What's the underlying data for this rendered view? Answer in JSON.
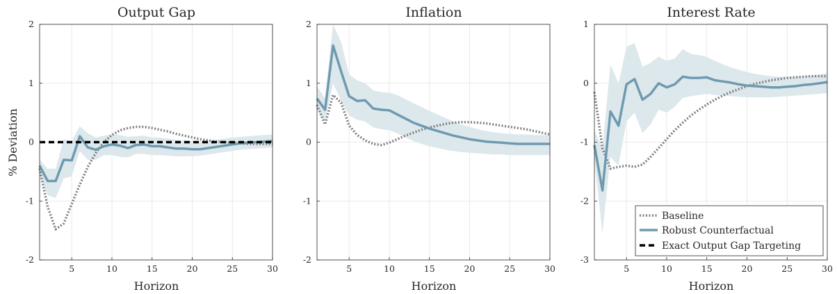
{
  "chart_data": [
    {
      "type": "line",
      "title": "Output Gap",
      "xlabel": "Horizon",
      "ylabel": "% Deviation",
      "xlim": [
        1,
        30
      ],
      "ylim": [
        -2,
        2
      ],
      "xticks": [
        5,
        10,
        15,
        20,
        25,
        30
      ],
      "yticks": [
        -2,
        -1,
        0,
        1,
        2
      ],
      "grid": true,
      "x": [
        1,
        2,
        3,
        4,
        5,
        6,
        7,
        8,
        9,
        10,
        11,
        12,
        13,
        14,
        15,
        16,
        17,
        18,
        19,
        20,
        21,
        22,
        23,
        24,
        25,
        26,
        27,
        28,
        29,
        30
      ],
      "series": [
        {
          "name": "Baseline",
          "style": "dotted",
          "color": "#808080",
          "values": [
            -0.45,
            -1.1,
            -1.48,
            -1.38,
            -1.05,
            -0.72,
            -0.42,
            -0.18,
            0.0,
            0.12,
            0.2,
            0.24,
            0.26,
            0.26,
            0.24,
            0.21,
            0.18,
            0.14,
            0.11,
            0.08,
            0.05,
            0.03,
            0.01,
            0.0,
            -0.01,
            -0.02,
            -0.03,
            -0.03,
            -0.03,
            -0.03
          ]
        },
        {
          "name": "Robust Counterfactual",
          "style": "solid",
          "color": "#6f9aae",
          "values": [
            -0.4,
            -0.66,
            -0.66,
            -0.3,
            -0.31,
            0.1,
            -0.09,
            -0.13,
            -0.07,
            -0.04,
            -0.06,
            -0.1,
            -0.05,
            -0.04,
            -0.07,
            -0.07,
            -0.09,
            -0.11,
            -0.11,
            -0.12,
            -0.12,
            -0.1,
            -0.08,
            -0.06,
            -0.04,
            -0.02,
            -0.01,
            0.0,
            0.01,
            0.02
          ],
          "band_lower": [
            -0.55,
            -0.9,
            -0.95,
            -0.62,
            -0.58,
            -0.15,
            -0.3,
            -0.3,
            -0.22,
            -0.22,
            -0.25,
            -0.26,
            -0.2,
            -0.2,
            -0.22,
            -0.22,
            -0.23,
            -0.24,
            -0.24,
            -0.24,
            -0.23,
            -0.21,
            -0.19,
            -0.17,
            -0.15,
            -0.13,
            -0.12,
            -0.11,
            -0.1,
            -0.09
          ],
          "band_upper": [
            -0.3,
            -0.45,
            -0.45,
            0.05,
            0.02,
            0.27,
            0.15,
            0.08,
            0.11,
            0.13,
            0.12,
            0.09,
            0.1,
            0.11,
            0.08,
            0.08,
            0.06,
            0.04,
            0.03,
            0.02,
            0.02,
            0.03,
            0.04,
            0.06,
            0.08,
            0.09,
            0.1,
            0.11,
            0.12,
            0.13
          ]
        },
        {
          "name": "Exact Output Gap Targeting",
          "style": "dashed",
          "color": "#000000",
          "values": [
            0,
            0,
            0,
            0,
            0,
            0,
            0,
            0,
            0,
            0,
            0,
            0,
            0,
            0,
            0,
            0,
            0,
            0,
            0,
            0,
            0,
            0,
            0,
            0,
            0,
            0,
            0,
            0,
            0,
            0
          ]
        }
      ]
    },
    {
      "type": "line",
      "title": "Inflation",
      "xlabel": "Horizon",
      "ylabel": "",
      "xlim": [
        1,
        30
      ],
      "ylim": [
        -2,
        2
      ],
      "xticks": [
        5,
        10,
        15,
        20,
        25,
        30
      ],
      "yticks": [
        -2,
        -1,
        0,
        1,
        2
      ],
      "grid": true,
      "x": [
        1,
        2,
        3,
        4,
        5,
        6,
        7,
        8,
        9,
        10,
        11,
        12,
        13,
        14,
        15,
        16,
        17,
        18,
        19,
        20,
        21,
        22,
        23,
        24,
        25,
        26,
        27,
        28,
        29,
        30
      ],
      "series": [
        {
          "name": "Baseline",
          "style": "dotted",
          "color": "#808080",
          "values": [
            0.63,
            0.3,
            0.8,
            0.67,
            0.28,
            0.12,
            0.03,
            -0.03,
            -0.05,
            -0.01,
            0.05,
            0.11,
            0.16,
            0.21,
            0.25,
            0.28,
            0.31,
            0.33,
            0.34,
            0.34,
            0.33,
            0.32,
            0.3,
            0.28,
            0.26,
            0.24,
            0.22,
            0.19,
            0.16,
            0.13
          ]
        },
        {
          "name": "Robust Counterfactual",
          "style": "solid",
          "color": "#6f9aae",
          "values": [
            0.74,
            0.55,
            1.64,
            1.2,
            0.78,
            0.7,
            0.71,
            0.57,
            0.55,
            0.54,
            0.47,
            0.4,
            0.33,
            0.28,
            0.23,
            0.19,
            0.15,
            0.11,
            0.08,
            0.05,
            0.03,
            0.01,
            0.0,
            -0.01,
            -0.02,
            -0.03,
            -0.03,
            -0.03,
            -0.03,
            -0.03
          ]
        },
        {
          "name": "Robust band",
          "style": "band",
          "color": "#dde8ed",
          "band_lower": [
            0.55,
            0.35,
            1.0,
            0.7,
            0.45,
            0.38,
            0.35,
            0.25,
            0.22,
            0.2,
            0.15,
            0.08,
            0.02,
            -0.03,
            -0.07,
            -0.1,
            -0.13,
            -0.15,
            -0.17,
            -0.18,
            -0.19,
            -0.2,
            -0.21,
            -0.21,
            -0.22,
            -0.22,
            -0.22,
            -0.22,
            -0.22,
            -0.22
          ],
          "band_upper": [
            0.95,
            0.75,
            2.0,
            1.7,
            1.15,
            1.05,
            1.0,
            0.88,
            0.85,
            0.84,
            0.8,
            0.73,
            0.66,
            0.6,
            0.53,
            0.47,
            0.41,
            0.35,
            0.3,
            0.26,
            0.22,
            0.19,
            0.17,
            0.15,
            0.14,
            0.13,
            0.13,
            0.12,
            0.12,
            0.12
          ]
        }
      ]
    },
    {
      "type": "line",
      "title": "Interest Rate",
      "xlabel": "Horizon",
      "ylabel": "",
      "xlim": [
        1,
        30
      ],
      "ylim": [
        -3,
        1
      ],
      "xticks": [
        5,
        10,
        15,
        20,
        25,
        30
      ],
      "yticks": [
        -3,
        -2,
        -1,
        0,
        1
      ],
      "grid": true,
      "legend": {
        "position": "bottom-right",
        "entries": [
          "Baseline",
          "Robust Counterfactual",
          "Exact Output Gap Targeting"
        ]
      },
      "x": [
        1,
        2,
        3,
        4,
        5,
        6,
        7,
        8,
        9,
        10,
        11,
        12,
        13,
        14,
        15,
        16,
        17,
        18,
        19,
        20,
        21,
        22,
        23,
        24,
        25,
        26,
        27,
        28,
        29,
        30
      ],
      "series": [
        {
          "name": "Baseline",
          "style": "dotted",
          "color": "#808080",
          "values": [
            -0.15,
            -1.1,
            -1.45,
            -1.42,
            -1.4,
            -1.42,
            -1.38,
            -1.25,
            -1.1,
            -0.95,
            -0.8,
            -0.67,
            -0.55,
            -0.45,
            -0.36,
            -0.28,
            -0.21,
            -0.15,
            -0.1,
            -0.05,
            -0.01,
            0.02,
            0.05,
            0.07,
            0.09,
            0.1,
            0.11,
            0.12,
            0.12,
            0.12
          ]
        },
        {
          "name": "Robust Counterfactual",
          "style": "solid",
          "color": "#6f9aae",
          "values": [
            -1.05,
            -1.82,
            -0.48,
            -0.72,
            -0.02,
            0.07,
            -0.28,
            -0.18,
            0.0,
            -0.07,
            -0.02,
            0.11,
            0.09,
            0.09,
            0.1,
            0.05,
            0.03,
            0.01,
            -0.02,
            -0.04,
            -0.05,
            -0.06,
            -0.07,
            -0.07,
            -0.06,
            -0.05,
            -0.03,
            -0.02,
            0.0,
            0.02
          ]
        },
        {
          "name": "Robust band",
          "style": "band",
          "color": "#dde8ed",
          "band_lower": [
            -1.3,
            -2.55,
            -1.25,
            -1.4,
            -0.65,
            -0.5,
            -0.85,
            -0.7,
            -0.45,
            -0.5,
            -0.4,
            -0.25,
            -0.22,
            -0.2,
            -0.18,
            -0.2,
            -0.21,
            -0.22,
            -0.23,
            -0.24,
            -0.24,
            -0.24,
            -0.24,
            -0.23,
            -0.22,
            -0.21,
            -0.2,
            -0.19,
            -0.18,
            -0.17
          ]
        },
        {
          "name": "Robust band upper",
          "style": "band-upper",
          "color": "#dde8ed",
          "band_upper": [
            -0.8,
            -1.1,
            0.32,
            0.0,
            0.62,
            0.68,
            0.28,
            0.35,
            0.45,
            0.38,
            0.42,
            0.58,
            0.5,
            0.48,
            0.45,
            0.38,
            0.32,
            0.27,
            0.23,
            0.19,
            0.16,
            0.14,
            0.12,
            0.11,
            0.11,
            0.11,
            0.12,
            0.13,
            0.15,
            0.17
          ]
        }
      ]
    }
  ]
}
